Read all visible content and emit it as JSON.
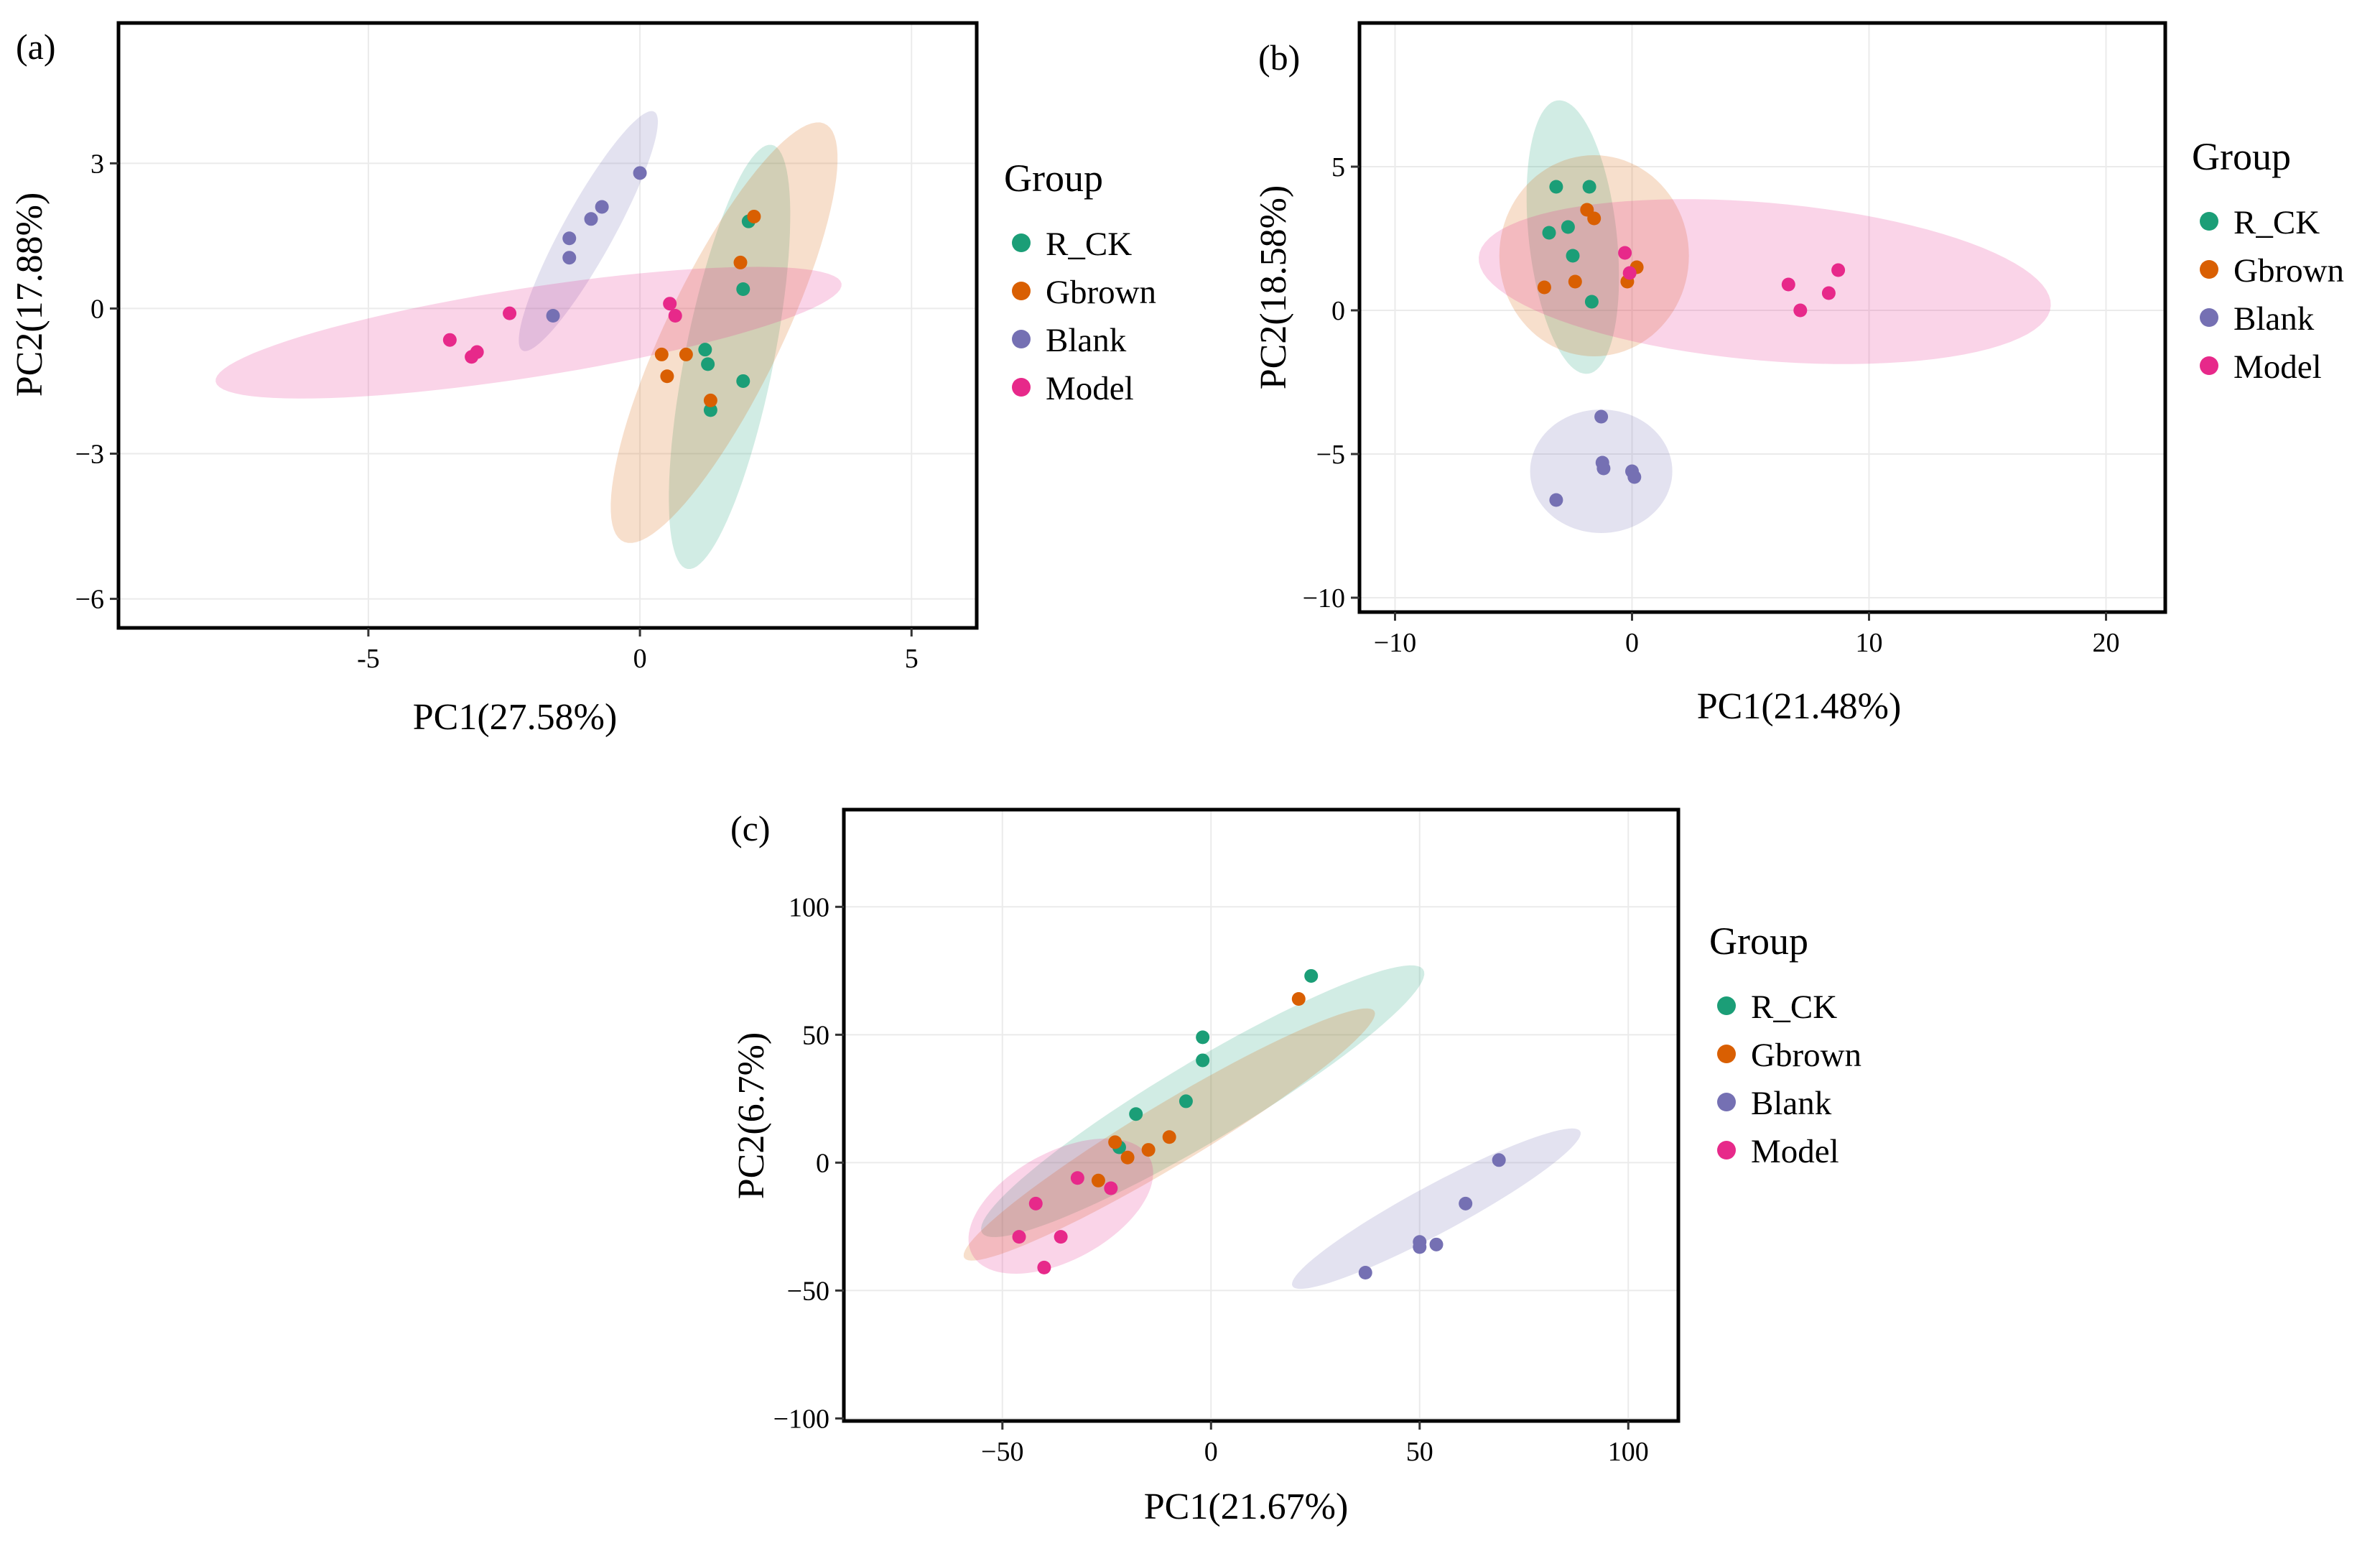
{
  "chart_data": [
    {
      "panel": "a",
      "panel_label": "(a)",
      "type": "scatter",
      "xlabel": "PC1(27.58%)",
      "ylabel": "PC2(17.88%)",
      "xlim": [
        -9.6,
        6.2
      ],
      "ylim": [
        -6.6,
        5.9
      ],
      "xticks": [
        -5,
        0,
        5
      ],
      "yticks": [
        3,
        0,
        -3,
        -6
      ],
      "xtick_labels": [
        "-5",
        "0",
        "5"
      ],
      "ytick_labels": [
        "3",
        "0",
        "−3",
        "−6"
      ],
      "grid": true,
      "legend_title": "Group",
      "legend_labels": [
        "R_CK",
        "Gbrown",
        "Blank",
        "Model"
      ],
      "series": [
        {
          "name": "R_CK",
          "color": "#1b9e77",
          "points": [
            [
              2.0,
              1.8
            ],
            [
              1.9,
              0.4
            ],
            [
              1.2,
              -0.85
            ],
            [
              1.25,
              -1.15
            ],
            [
              1.3,
              -2.1
            ],
            [
              1.9,
              -1.5
            ]
          ],
          "ellipse": {
            "center": [
              1.65,
              -1.0
            ],
            "semi_major": 4.45,
            "semi_minor": 0.82,
            "angle_deg": 80
          }
        },
        {
          "name": "Gbrown",
          "color": "#d95f02",
          "points": [
            [
              2.1,
              1.9
            ],
            [
              1.85,
              0.95
            ],
            [
              0.85,
              -0.95
            ],
            [
              0.4,
              -0.95
            ],
            [
              0.5,
              -1.4
            ],
            [
              1.3,
              -1.9
            ]
          ],
          "ellipse": {
            "center": [
              1.55,
              -0.5
            ],
            "semi_major": 4.7,
            "semi_minor": 1.08,
            "angle_deg": 67
          }
        },
        {
          "name": "Blank",
          "color": "#7570b3",
          "points": [
            [
              0.0,
              2.8
            ],
            [
              -0.7,
              2.1
            ],
            [
              -0.9,
              1.85
            ],
            [
              -1.3,
              1.45
            ],
            [
              -1.3,
              1.05
            ],
            [
              -1.6,
              -0.15
            ]
          ],
          "ellipse": {
            "center": [
              -0.95,
              1.6
            ],
            "semi_major": 2.75,
            "semi_minor": 0.48,
            "angle_deg": 64
          }
        },
        {
          "name": "Model",
          "color": "#e7298a",
          "points": [
            [
              0.55,
              0.1
            ],
            [
              0.65,
              -0.15
            ],
            [
              -2.4,
              -0.1
            ],
            [
              -3.5,
              -0.65
            ],
            [
              -3.1,
              -1.0
            ],
            [
              -3.0,
              -0.9
            ]
          ],
          "ellipse": {
            "center": [
              -2.05,
              -0.5
            ],
            "semi_major": 5.85,
            "semi_minor": 0.92,
            "angle_deg": 10
          }
        }
      ]
    },
    {
      "panel": "b",
      "panel_label": "(b)",
      "type": "scatter",
      "xlabel": "PC1(21.48%)",
      "ylabel": "PC2(18.58%)",
      "xlim": [
        -11.5,
        22.5
      ],
      "ylim": [
        -10.5,
        10.0
      ],
      "xticks": [
        -10,
        0,
        10,
        20
      ],
      "yticks": [
        5,
        0,
        -5,
        -10
      ],
      "xtick_labels": [
        "−10",
        "0",
        "10",
        "20"
      ],
      "ytick_labels": [
        "5",
        "0",
        "−5",
        "−10"
      ],
      "grid": true,
      "legend_title": "Group",
      "legend_labels": [
        "R_CK",
        "Gbrown",
        "Blank",
        "Model"
      ],
      "series": [
        {
          "name": "R_CK",
          "color": "#1b9e77",
          "points": [
            [
              -3.2,
              4.3
            ],
            [
              -1.8,
              4.3
            ],
            [
              -3.5,
              2.7
            ],
            [
              -2.7,
              2.9
            ],
            [
              -2.5,
              1.9
            ],
            [
              -1.7,
              0.3
            ]
          ],
          "ellipse": {
            "center": [
              -2.5,
              2.55
            ],
            "semi_major": 4.8,
            "semi_minor": 1.85,
            "angle_deg": 98
          }
        },
        {
          "name": "Gbrown",
          "color": "#d95f02",
          "points": [
            [
              -1.9,
              3.5
            ],
            [
              -1.6,
              3.2
            ],
            [
              -3.7,
              0.8
            ],
            [
              -2.4,
              1.0
            ],
            [
              0.2,
              1.5
            ],
            [
              -0.2,
              1.0
            ]
          ],
          "ellipse": {
            "center": [
              -1.6,
              1.9
            ],
            "semi_major": 4.0,
            "semi_minor": 3.5,
            "angle_deg": 0
          }
        },
        {
          "name": "Blank",
          "color": "#7570b3",
          "points": [
            [
              -1.3,
              -3.7
            ],
            [
              -1.25,
              -5.3
            ],
            [
              -1.2,
              -5.5
            ],
            [
              0.0,
              -5.6
            ],
            [
              0.1,
              -5.8
            ],
            [
              -3.2,
              -6.6
            ]
          ],
          "ellipse": {
            "center": [
              -1.3,
              -5.6
            ],
            "semi_major": 3.0,
            "semi_minor": 2.15,
            "angle_deg": 0
          }
        },
        {
          "name": "Model",
          "color": "#e7298a",
          "points": [
            [
              -0.3,
              2.0
            ],
            [
              -0.1,
              1.3
            ],
            [
              6.6,
              0.9
            ],
            [
              8.7,
              1.4
            ],
            [
              8.3,
              0.6
            ],
            [
              7.1,
              0.0
            ]
          ],
          "ellipse": {
            "center": [
              5.6,
              1.0
            ],
            "semi_major": 12.1,
            "semi_minor": 2.75,
            "angle_deg": -4
          }
        }
      ]
    },
    {
      "panel": "c",
      "panel_label": "(c)",
      "type": "scatter",
      "xlabel": "PC1(21.67%)",
      "ylabel": "PC2(6.7%)",
      "xlim": [
        -88,
        112
      ],
      "ylim": [
        -101,
        138
      ],
      "xticks": [
        -50,
        0,
        50,
        100
      ],
      "yticks": [
        100,
        50,
        0,
        -50,
        -100
      ],
      "xtick_labels": [
        "−50",
        "0",
        "50",
        "100"
      ],
      "ytick_labels": [
        "100",
        "50",
        "0",
        "−50",
        "−100"
      ],
      "grid": true,
      "legend_title": "Group",
      "legend_labels": [
        "R_CK",
        "Gbrown",
        "Blank",
        "Model"
      ],
      "series": [
        {
          "name": "R_CK",
          "color": "#1b9e77",
          "points": [
            [
              24,
              73
            ],
            [
              -2,
              49
            ],
            [
              -2,
              40
            ],
            [
              -6,
              24
            ],
            [
              -18,
              19
            ],
            [
              -22,
              6
            ]
          ],
          "ellipse": {
            "center": [
              -2,
              24
            ],
            "semi_major": 74,
            "semi_minor": 13,
            "angle_deg": 45
          }
        },
        {
          "name": "Gbrown",
          "color": "#d95f02",
          "points": [
            [
              21,
              64
            ],
            [
              -10,
              10
            ],
            [
              -15,
              5
            ],
            [
              -20,
              2
            ],
            [
              -23,
              8
            ],
            [
              -27,
              -7
            ]
          ],
          "ellipse": {
            "center": [
              -10,
              11
            ],
            "semi_major": 69,
            "semi_minor": 10,
            "angle_deg": 45
          }
        },
        {
          "name": "Blank",
          "color": "#7570b3",
          "points": [
            [
              69,
              1
            ],
            [
              61,
              -16
            ],
            [
              54,
              -32
            ],
            [
              50,
              -31
            ],
            [
              50,
              -33
            ],
            [
              37,
              -43
            ]
          ],
          "ellipse": {
            "center": [
              54,
              -18
            ],
            "semi_major": 46,
            "semi_minor": 8,
            "angle_deg": 42
          }
        },
        {
          "name": "Model",
          "color": "#e7298a",
          "points": [
            [
              -32,
              -6
            ],
            [
              -24,
              -10
            ],
            [
              -42,
              -16
            ],
            [
              -36,
              -29
            ],
            [
              -46,
              -29
            ],
            [
              -40,
              -41
            ]
          ],
          "ellipse": {
            "center": [
              -36,
              -17
            ],
            "semi_major": 30,
            "semi_minor": 17,
            "angle_deg": 55
          }
        }
      ]
    }
  ]
}
